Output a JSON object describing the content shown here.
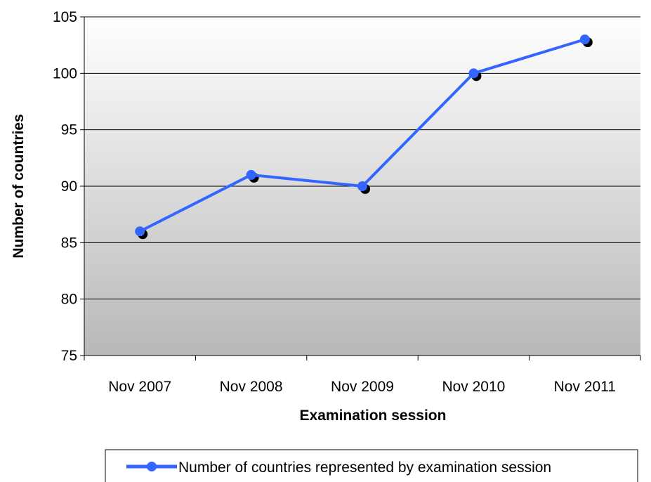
{
  "chart_data": {
    "type": "line",
    "categories": [
      "Nov 2007",
      "Nov 2008",
      "Nov 2009",
      "Nov 2010",
      "Nov 2011"
    ],
    "series": [
      {
        "name": "Number of countries represented by examination session",
        "values": [
          86,
          91,
          90,
          100,
          103
        ],
        "color": "#3366ff",
        "marker_color": "#3366ff"
      }
    ],
    "title": "",
    "xlabel": "Examination session",
    "ylabel": "Number of countries",
    "ylim": [
      75,
      105
    ],
    "yticks": [
      "75",
      "80",
      "85",
      "90",
      "95",
      "100",
      "105"
    ],
    "grid": true,
    "legend_position": "bottom",
    "plot_background": "gradient white to gray"
  }
}
